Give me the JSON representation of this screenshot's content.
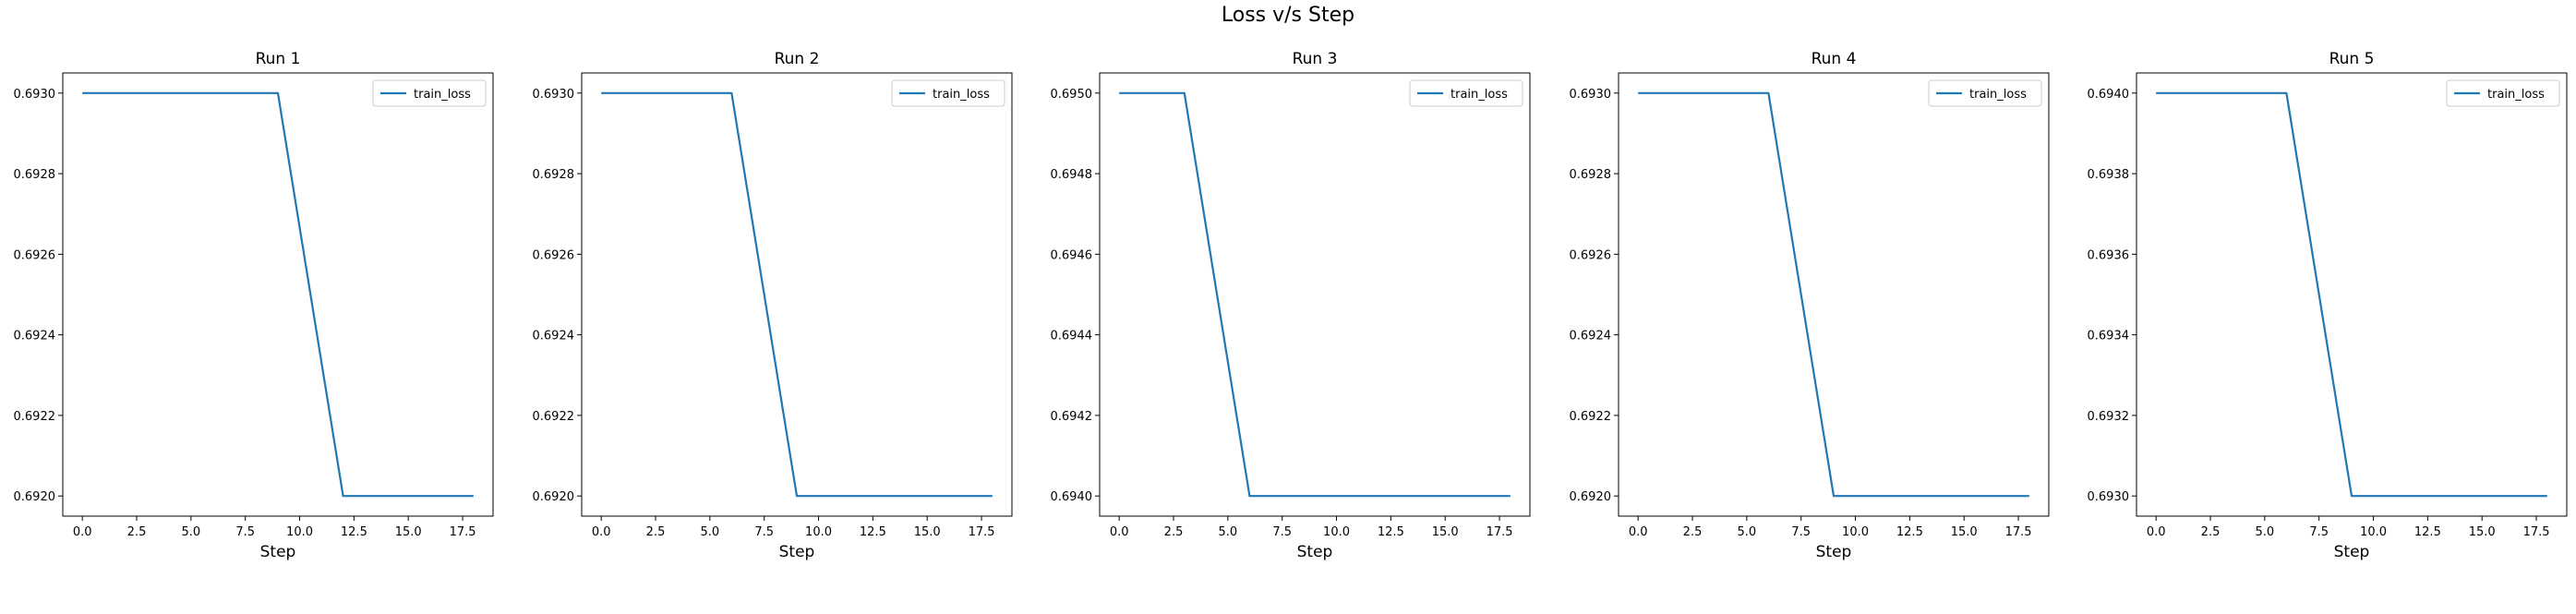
{
  "figure_title": "Loss v/s Step",
  "line_color": "#1f77b4",
  "chart_data": [
    {
      "type": "line",
      "title": "Run 1",
      "xlabel": "Step",
      "ylabel": "",
      "xlim": [
        -0.9,
        18.9
      ],
      "ylim": [
        0.69195,
        0.69305
      ],
      "xticks": [
        0.0,
        2.5,
        5.0,
        7.5,
        10.0,
        12.5,
        15.0,
        17.5
      ],
      "xtick_labels": [
        "0.0",
        "2.5",
        "5.0",
        "7.5",
        "10.0",
        "12.5",
        "15.0",
        "17.5"
      ],
      "yticks": [
        0.692,
        0.6922,
        0.6924,
        0.6926,
        0.6928,
        0.693
      ],
      "ytick_labels": [
        "0.6920",
        "0.6922",
        "0.6924",
        "0.6926",
        "0.6928",
        "0.6930"
      ],
      "legend": "top-right",
      "series": [
        {
          "name": "train_loss",
          "x": [
            0,
            3,
            6,
            9,
            12,
            15,
            18
          ],
          "y": [
            0.693,
            0.693,
            0.693,
            0.693,
            0.692,
            0.692,
            0.692
          ]
        }
      ]
    },
    {
      "type": "line",
      "title": "Run 2",
      "xlabel": "Step",
      "ylabel": "",
      "xlim": [
        -0.9,
        18.9
      ],
      "ylim": [
        0.69195,
        0.69305
      ],
      "xticks": [
        0.0,
        2.5,
        5.0,
        7.5,
        10.0,
        12.5,
        15.0,
        17.5
      ],
      "xtick_labels": [
        "0.0",
        "2.5",
        "5.0",
        "7.5",
        "10.0",
        "12.5",
        "15.0",
        "17.5"
      ],
      "yticks": [
        0.692,
        0.6922,
        0.6924,
        0.6926,
        0.6928,
        0.693
      ],
      "ytick_labels": [
        "0.6920",
        "0.6922",
        "0.6924",
        "0.6926",
        "0.6928",
        "0.6930"
      ],
      "legend": "top-right",
      "series": [
        {
          "name": "train_loss",
          "x": [
            0,
            3,
            6,
            9,
            12,
            15,
            18
          ],
          "y": [
            0.693,
            0.693,
            0.693,
            0.692,
            0.692,
            0.692,
            0.692
          ]
        }
      ]
    },
    {
      "type": "line",
      "title": "Run 3",
      "xlabel": "Step",
      "ylabel": "",
      "xlim": [
        -0.9,
        18.9
      ],
      "ylim": [
        0.69395,
        0.69505
      ],
      "xticks": [
        0.0,
        2.5,
        5.0,
        7.5,
        10.0,
        12.5,
        15.0,
        17.5
      ],
      "xtick_labels": [
        "0.0",
        "2.5",
        "5.0",
        "7.5",
        "10.0",
        "12.5",
        "15.0",
        "17.5"
      ],
      "yticks": [
        0.694,
        0.6942,
        0.6944,
        0.6946,
        0.6948,
        0.695
      ],
      "ytick_labels": [
        "0.6940",
        "0.6942",
        "0.6944",
        "0.6946",
        "0.6948",
        "0.6950"
      ],
      "legend": "top-right",
      "series": [
        {
          "name": "train_loss",
          "x": [
            0,
            3,
            6,
            9,
            12,
            15,
            18
          ],
          "y": [
            0.695,
            0.695,
            0.694,
            0.694,
            0.694,
            0.694,
            0.694
          ]
        }
      ]
    },
    {
      "type": "line",
      "title": "Run 4",
      "xlabel": "Step",
      "ylabel": "",
      "xlim": [
        -0.9,
        18.9
      ],
      "ylim": [
        0.69195,
        0.69305
      ],
      "xticks": [
        0.0,
        2.5,
        5.0,
        7.5,
        10.0,
        12.5,
        15.0,
        17.5
      ],
      "xtick_labels": [
        "0.0",
        "2.5",
        "5.0",
        "7.5",
        "10.0",
        "12.5",
        "15.0",
        "17.5"
      ],
      "yticks": [
        0.692,
        0.6922,
        0.6924,
        0.6926,
        0.6928,
        0.693
      ],
      "ytick_labels": [
        "0.6920",
        "0.6922",
        "0.6924",
        "0.6926",
        "0.6928",
        "0.6930"
      ],
      "legend": "top-right",
      "series": [
        {
          "name": "train_loss",
          "x": [
            0,
            3,
            6,
            9,
            12,
            15,
            18
          ],
          "y": [
            0.693,
            0.693,
            0.693,
            0.692,
            0.692,
            0.692,
            0.692
          ]
        }
      ]
    },
    {
      "type": "line",
      "title": "Run 5",
      "xlabel": "Step",
      "ylabel": "",
      "xlim": [
        -0.9,
        18.9
      ],
      "ylim": [
        0.69295,
        0.69405
      ],
      "xticks": [
        0.0,
        2.5,
        5.0,
        7.5,
        10.0,
        12.5,
        15.0,
        17.5
      ],
      "xtick_labels": [
        "0.0",
        "2.5",
        "5.0",
        "7.5",
        "10.0",
        "12.5",
        "15.0",
        "17.5"
      ],
      "yticks": [
        0.693,
        0.6932,
        0.6934,
        0.6936,
        0.6938,
        0.694
      ],
      "ytick_labels": [
        "0.6930",
        "0.6932",
        "0.6934",
        "0.6936",
        "0.6938",
        "0.6940"
      ],
      "legend": "top-right",
      "series": [
        {
          "name": "train_loss",
          "x": [
            0,
            3,
            6,
            9,
            12,
            15,
            18
          ],
          "y": [
            0.694,
            0.694,
            0.694,
            0.693,
            0.693,
            0.693,
            0.693
          ]
        }
      ]
    }
  ]
}
